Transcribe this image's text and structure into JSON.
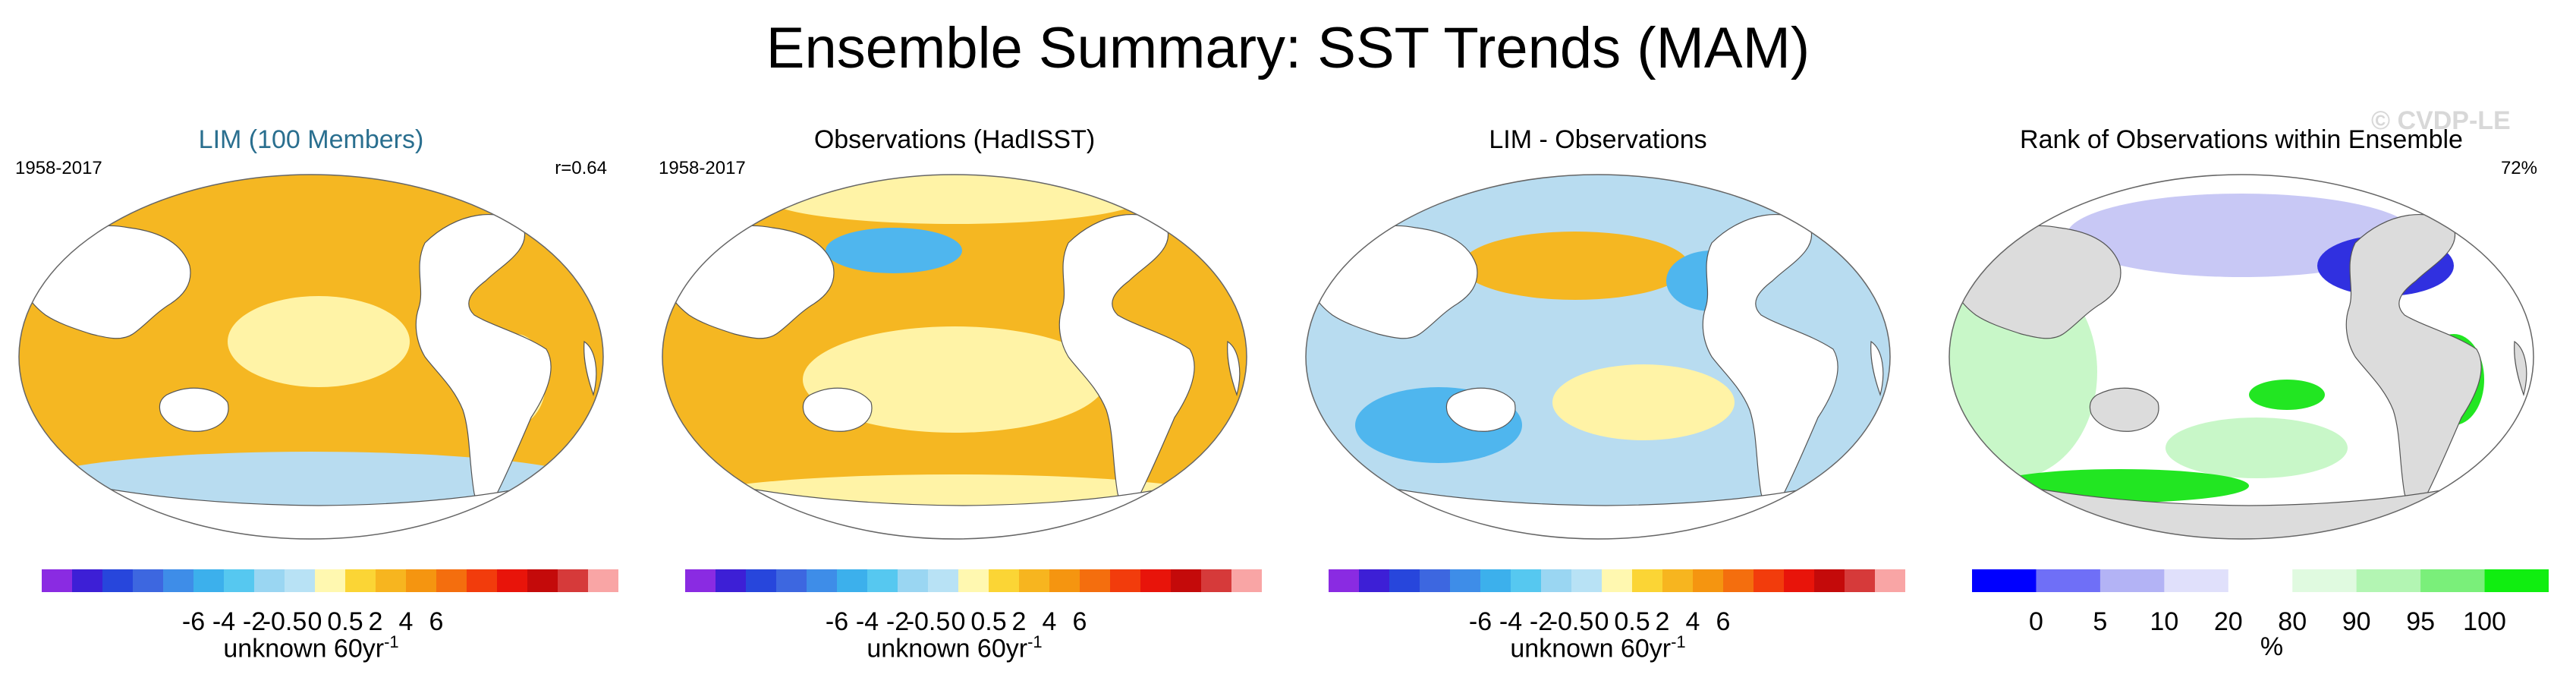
{
  "title": "Ensemble Summary: SST Trends (MAM)",
  "watermark": "© CVDP-LE",
  "colors": {
    "land": "#ffffff",
    "land_rank": "#dcdcdc",
    "ocean_warm": "#f5b722",
    "ocean_light": "#fff3a6",
    "ocean_cool": "#b8dcf0",
    "ocean_blue": "#4fb6ee",
    "ocean_white": "#ffffff",
    "rank_green": "#22e622",
    "rank_lightgreen": "#c8f7c8",
    "rank_blue": "#3030e0",
    "rank_lightblue": "#c8c8f5"
  },
  "panels": [
    {
      "title": "LIM (100 Members)",
      "period": "1958-2017",
      "corner": "r=0.64",
      "colorbar": {
        "colors": [
          "#8a2be2",
          "#3d1fd6",
          "#2746dc",
          "#3d67e0",
          "#3e8de8",
          "#3cb0ec",
          "#56c8f0",
          "#9ad6f2",
          "#b8e2f5",
          "#fff8b0",
          "#fbd535",
          "#f7b51f",
          "#f59510",
          "#f46e0e",
          "#f23c0c",
          "#e8140a",
          "#c40a0a",
          "#d63a3a",
          "#f9a5a5"
        ],
        "ticks": [
          "-6",
          "-4",
          "-2",
          "-0.5",
          "0",
          "0.5",
          "2",
          "4",
          "6"
        ],
        "label": "unknown 60yr",
        "label_sup": "-1"
      }
    },
    {
      "title": "Observations (HadISST)",
      "period": "1958-2017",
      "corner": "",
      "colorbar": {
        "colors": [
          "#8a2be2",
          "#3d1fd6",
          "#2746dc",
          "#3d67e0",
          "#3e8de8",
          "#3cb0ec",
          "#56c8f0",
          "#9ad6f2",
          "#b8e2f5",
          "#fff8b0",
          "#fbd535",
          "#f7b51f",
          "#f59510",
          "#f46e0e",
          "#f23c0c",
          "#e8140a",
          "#c40a0a",
          "#d63a3a",
          "#f9a5a5"
        ],
        "ticks": [
          "-6",
          "-4",
          "-2",
          "-0.5",
          "0",
          "0.5",
          "2",
          "4",
          "6"
        ],
        "label": "unknown 60yr",
        "label_sup": "-1"
      }
    },
    {
      "title": "LIM - Observations",
      "period": "",
      "corner": "",
      "colorbar": {
        "colors": [
          "#8a2be2",
          "#3d1fd6",
          "#2746dc",
          "#3d67e0",
          "#3e8de8",
          "#3cb0ec",
          "#56c8f0",
          "#9ad6f2",
          "#b8e2f5",
          "#fff8b0",
          "#fbd535",
          "#f7b51f",
          "#f59510",
          "#f46e0e",
          "#f23c0c",
          "#e8140a",
          "#c40a0a",
          "#d63a3a",
          "#f9a5a5"
        ],
        "ticks": [
          "-6",
          "-4",
          "-2",
          "-0.5",
          "0",
          "0.5",
          "2",
          "4",
          "6"
        ],
        "label": "unknown 60yr",
        "label_sup": "-1"
      }
    },
    {
      "title": "Rank of Observations within Ensemble",
      "period": "",
      "corner": "72%",
      "colorbar": {
        "colors": [
          "#0000ff",
          "#6f6ff7",
          "#b3b3f5",
          "#e0e0fb",
          "#ffffff",
          "#e0fae0",
          "#b3f5b3",
          "#7aef7a",
          "#10ee10"
        ],
        "ticks": [
          "0",
          "5",
          "10",
          "20",
          "80",
          "90",
          "95",
          "100"
        ],
        "label": "%",
        "label_sup": ""
      }
    }
  ]
}
